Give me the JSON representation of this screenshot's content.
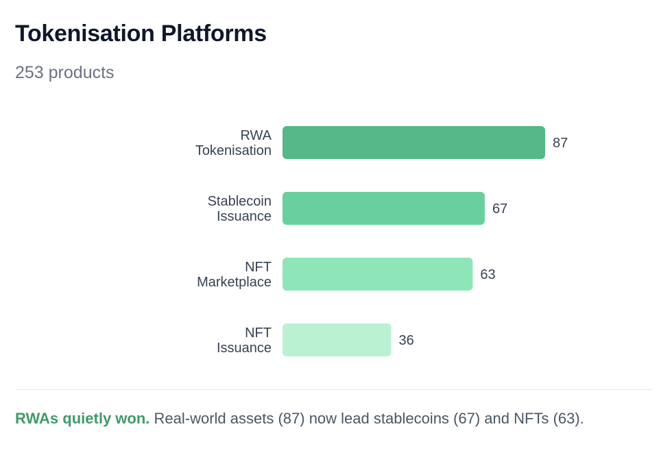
{
  "header": {
    "title": "Tokenisation Platforms",
    "subtitle": "253 products"
  },
  "chart_data": {
    "type": "bar",
    "orientation": "horizontal",
    "categories": [
      [
        "RWA",
        "Tokenisation"
      ],
      [
        "Stablecoin",
        "Issuance"
      ],
      [
        "NFT",
        "Marketplace"
      ],
      [
        "NFT",
        "Issuance"
      ]
    ],
    "values": [
      87,
      67,
      63,
      36
    ],
    "colors": [
      "#55b886",
      "#69d09d",
      "#8ee5b7",
      "#b9f1d2"
    ],
    "title": "",
    "xlabel": "",
    "ylabel": "",
    "grid": false,
    "data_labels": true
  },
  "insight": {
    "lead": "RWAs quietly won.",
    "text": " Real-world assets (87) now lead stablecoins (67) and NFTs (63)."
  }
}
